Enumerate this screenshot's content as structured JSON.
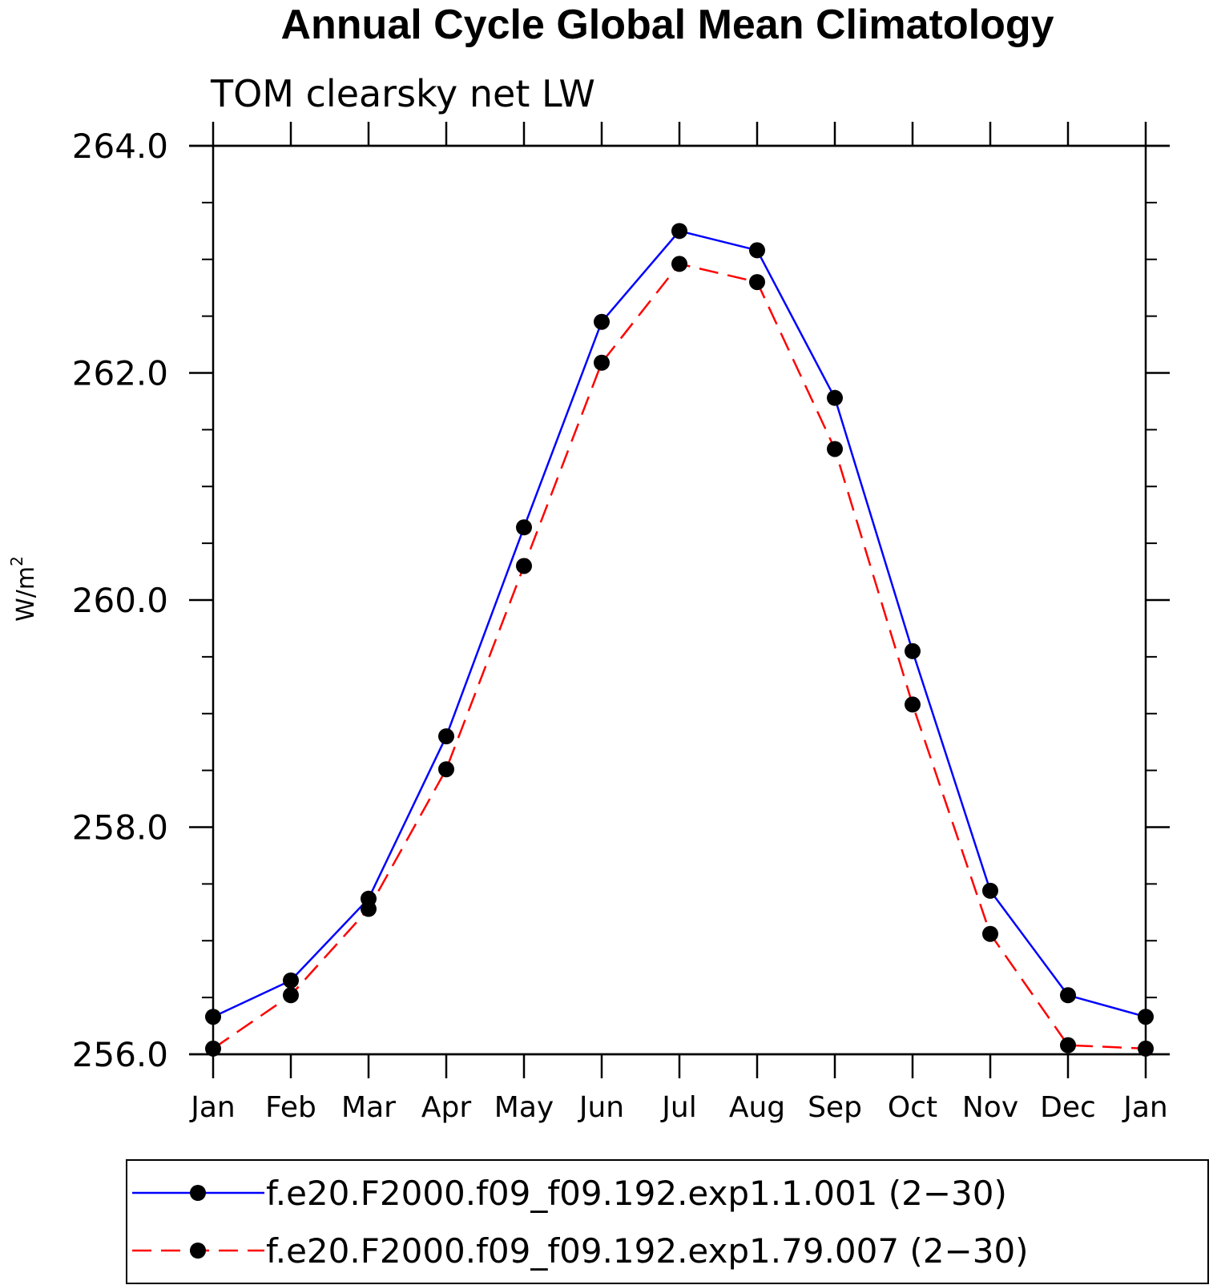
{
  "chart_data": {
    "type": "line",
    "title": "Annual Cycle Global Mean Climatology",
    "subtitle": "TOM clearsky net LW",
    "ylabel": "W/m",
    "ylabel_sup": "2",
    "xlabel": "",
    "categories": [
      "Jan",
      "Feb",
      "Mar",
      "Apr",
      "May",
      "Jun",
      "Jul",
      "Aug",
      "Sep",
      "Oct",
      "Nov",
      "Dec",
      "Jan"
    ],
    "ylim": [
      256.0,
      264.0
    ],
    "yticks": [
      "256.0",
      "258.0",
      "260.0",
      "262.0",
      "264.0"
    ],
    "grid": false,
    "legend_position": "bottom",
    "series": [
      {
        "name": "f.e20.F2000.f09_f09.192.exp1.1.001 (2−30)",
        "color": "#0000ff",
        "dash": "solid",
        "marker": "filled-circle",
        "values": [
          256.33,
          256.65,
          257.37,
          258.8,
          260.64,
          262.45,
          263.25,
          263.08,
          261.78,
          259.55,
          257.44,
          256.52,
          256.33
        ]
      },
      {
        "name": "f.e20.F2000.f09_f09.192.exp1.79.007 (2−30)",
        "color": "#ff0000",
        "dash": "dashed",
        "marker": "filled-circle",
        "values": [
          256.05,
          256.52,
          257.28,
          258.51,
          260.3,
          262.09,
          262.96,
          262.8,
          261.33,
          259.08,
          257.06,
          256.08,
          256.05
        ]
      }
    ]
  }
}
